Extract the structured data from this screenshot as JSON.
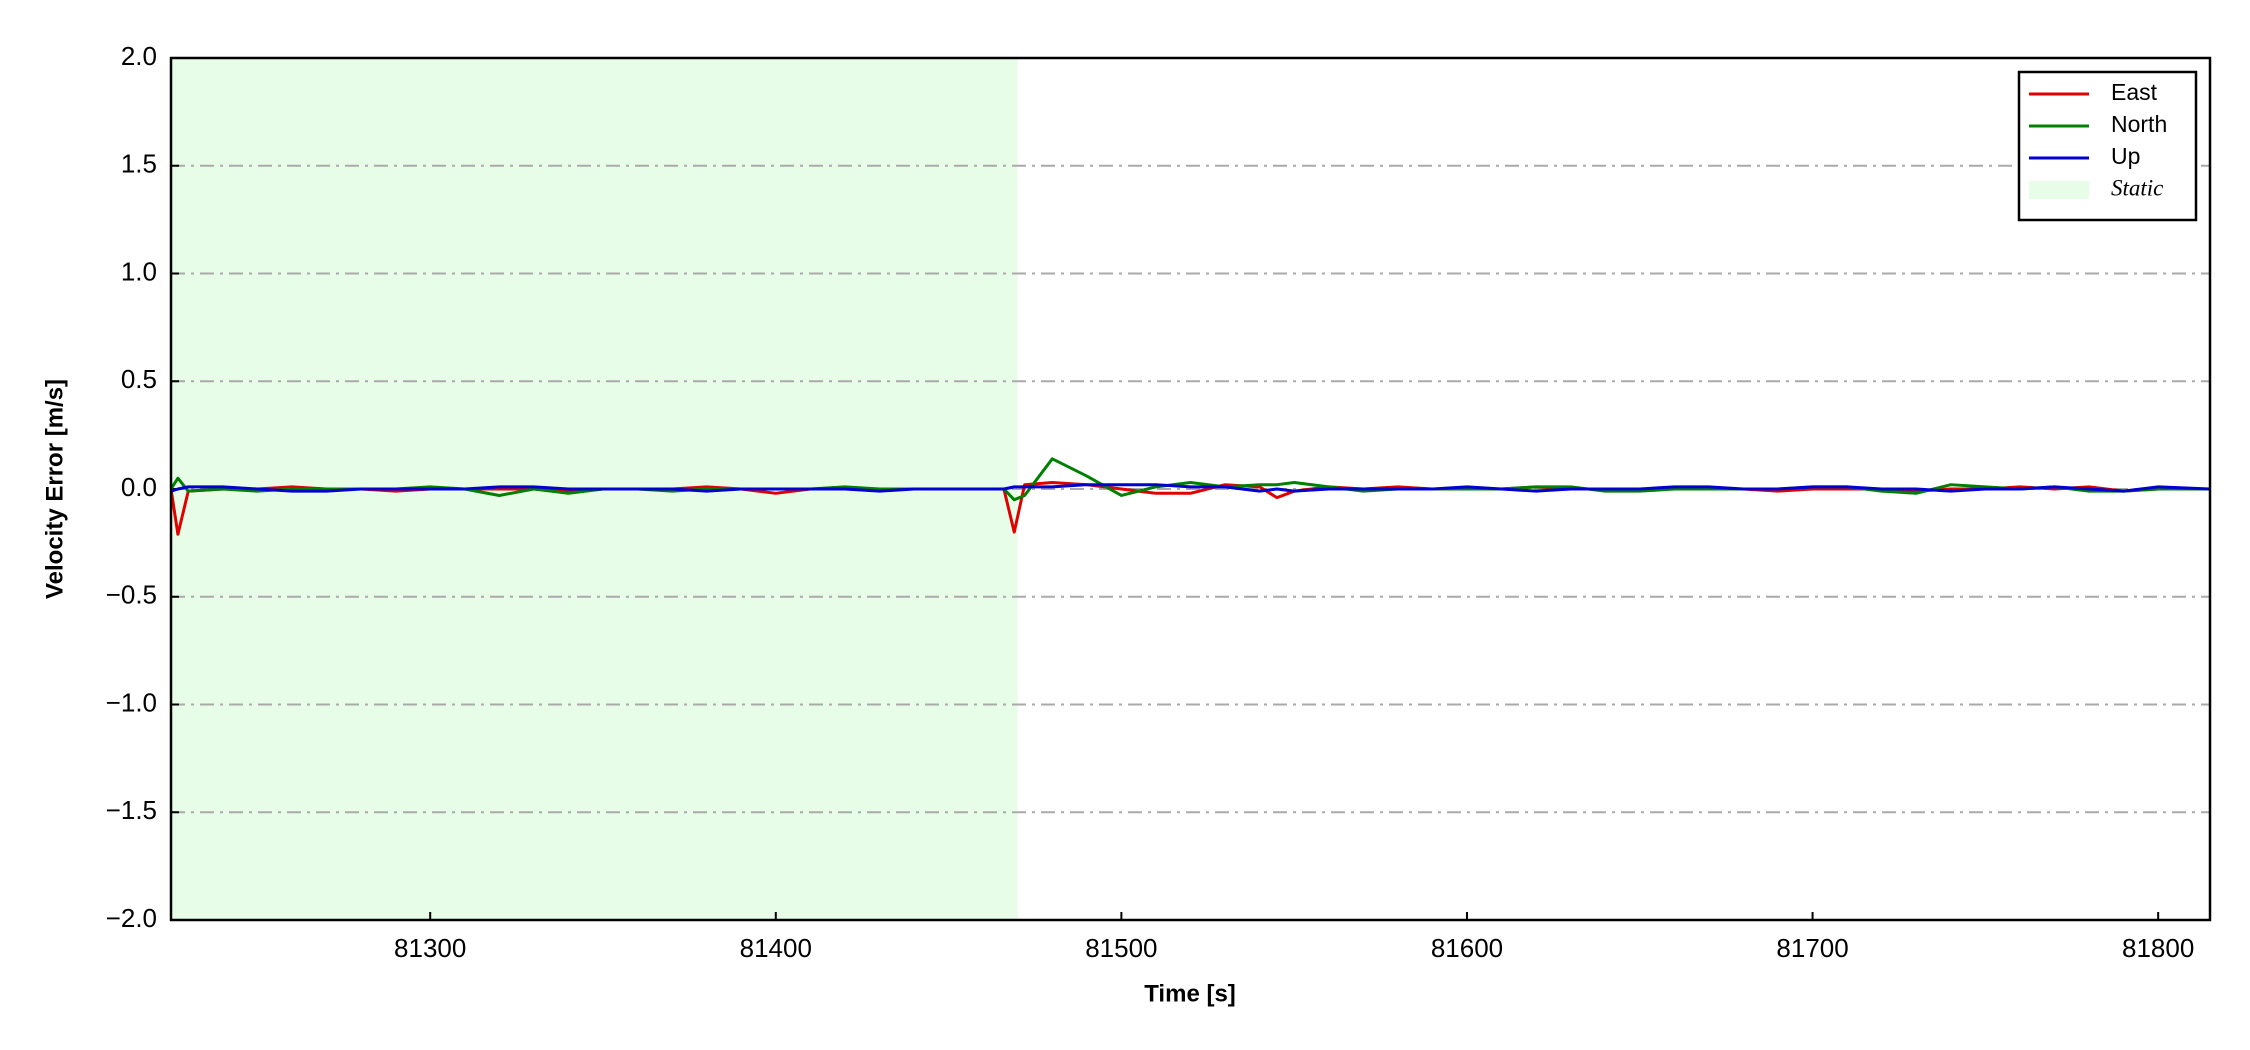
{
  "chart_data": {
    "type": "line",
    "xlabel": "Time [s]",
    "ylabel": "Velocity Error [m/s]",
    "x": [
      81225,
      81227,
      81230,
      81240,
      81250,
      81260,
      81270,
      81280,
      81290,
      81300,
      81310,
      81320,
      81330,
      81340,
      81350,
      81360,
      81370,
      81380,
      81390,
      81400,
      81410,
      81420,
      81430,
      81440,
      81450,
      81460,
      81466,
      81469,
      81472,
      81480,
      81490,
      81500,
      81510,
      81520,
      81530,
      81540,
      81545,
      81550,
      81560,
      81570,
      81580,
      81590,
      81600,
      81610,
      81620,
      81630,
      81640,
      81650,
      81660,
      81670,
      81680,
      81690,
      81700,
      81710,
      81720,
      81730,
      81740,
      81750,
      81760,
      81770,
      81780,
      81790,
      81800,
      81815
    ],
    "series": [
      {
        "name": "East",
        "color": "#e00000",
        "values": [
          0,
          -0.21,
          -0.01,
          0,
          0,
          0.01,
          0,
          0,
          -0.01,
          0,
          0,
          0,
          0,
          -0.01,
          0,
          0,
          0,
          0.01,
          0,
          -0.02,
          0,
          0,
          0,
          0,
          0,
          0,
          0,
          -0.2,
          0.02,
          0.03,
          0.02,
          0,
          -0.02,
          -0.02,
          0.02,
          0.01,
          -0.04,
          -0.01,
          0.01,
          0,
          0.01,
          0,
          0,
          0,
          0.01,
          0,
          0,
          0,
          0,
          0,
          0,
          -0.01,
          0,
          0,
          0,
          -0.01,
          0,
          0,
          0.01,
          0,
          0.01,
          -0.01,
          0,
          0
        ]
      },
      {
        "name": "North",
        "color": "#008000",
        "values": [
          0,
          0.05,
          -0.01,
          0,
          -0.01,
          0,
          0,
          0,
          0,
          0.01,
          0,
          -0.03,
          0,
          -0.02,
          0,
          0,
          -0.01,
          0,
          0,
          0,
          0,
          0.01,
          0,
          0,
          0,
          0,
          0,
          -0.05,
          -0.03,
          0.14,
          0.06,
          -0.03,
          0.01,
          0.03,
          0.01,
          0.02,
          0.02,
          0.03,
          0.01,
          -0.01,
          0,
          0,
          0,
          0,
          0.01,
          0.01,
          -0.01,
          -0.01,
          0,
          0,
          0,
          0,
          0.01,
          0.01,
          -0.01,
          -0.02,
          0.02,
          0.01,
          0,
          0.01,
          -0.01,
          -0.01,
          0,
          0
        ]
      },
      {
        "name": "Up",
        "color": "#0000d0",
        "values": [
          -0.01,
          0,
          0.01,
          0.01,
          0,
          -0.01,
          -0.01,
          0,
          0,
          0,
          0,
          0.01,
          0.01,
          0,
          0,
          0,
          0,
          -0.01,
          0,
          0,
          0,
          0,
          -0.01,
          0,
          0,
          0,
          0,
          0.01,
          0.01,
          0.01,
          0.02,
          0.02,
          0.02,
          0.01,
          0.01,
          -0.01,
          0,
          -0.01,
          0,
          0,
          0,
          0,
          0.01,
          0,
          -0.01,
          0,
          0,
          0,
          0.01,
          0.01,
          0,
          0,
          0.01,
          0.01,
          0,
          0,
          -0.01,
          0,
          0,
          0.01,
          0,
          -0.01,
          0.01,
          0
        ]
      }
    ],
    "static": {
      "label": "Static",
      "start": 81225,
      "end": 81470,
      "color": "#e8fde8"
    },
    "xlim": [
      81225,
      81815
    ],
    "xticks": [
      81300,
      81400,
      81500,
      81600,
      81700,
      81800
    ],
    "ylim": [
      -2,
      2
    ],
    "yticks": [
      {
        "value": -2,
        "label": "−2.0"
      },
      {
        "value": -1.5,
        "label": "−1.5"
      },
      {
        "value": -1,
        "label": "−1.0"
      },
      {
        "value": -0.5,
        "label": "−0.5"
      },
      {
        "value": 0,
        "label": "0.0"
      },
      0.5,
      {
        "value": 1,
        "label": "1.0"
      },
      1.5,
      {
        "value": 2,
        "label": "2.0"
      }
    ],
    "grid": true,
    "legend": "upper right"
  }
}
